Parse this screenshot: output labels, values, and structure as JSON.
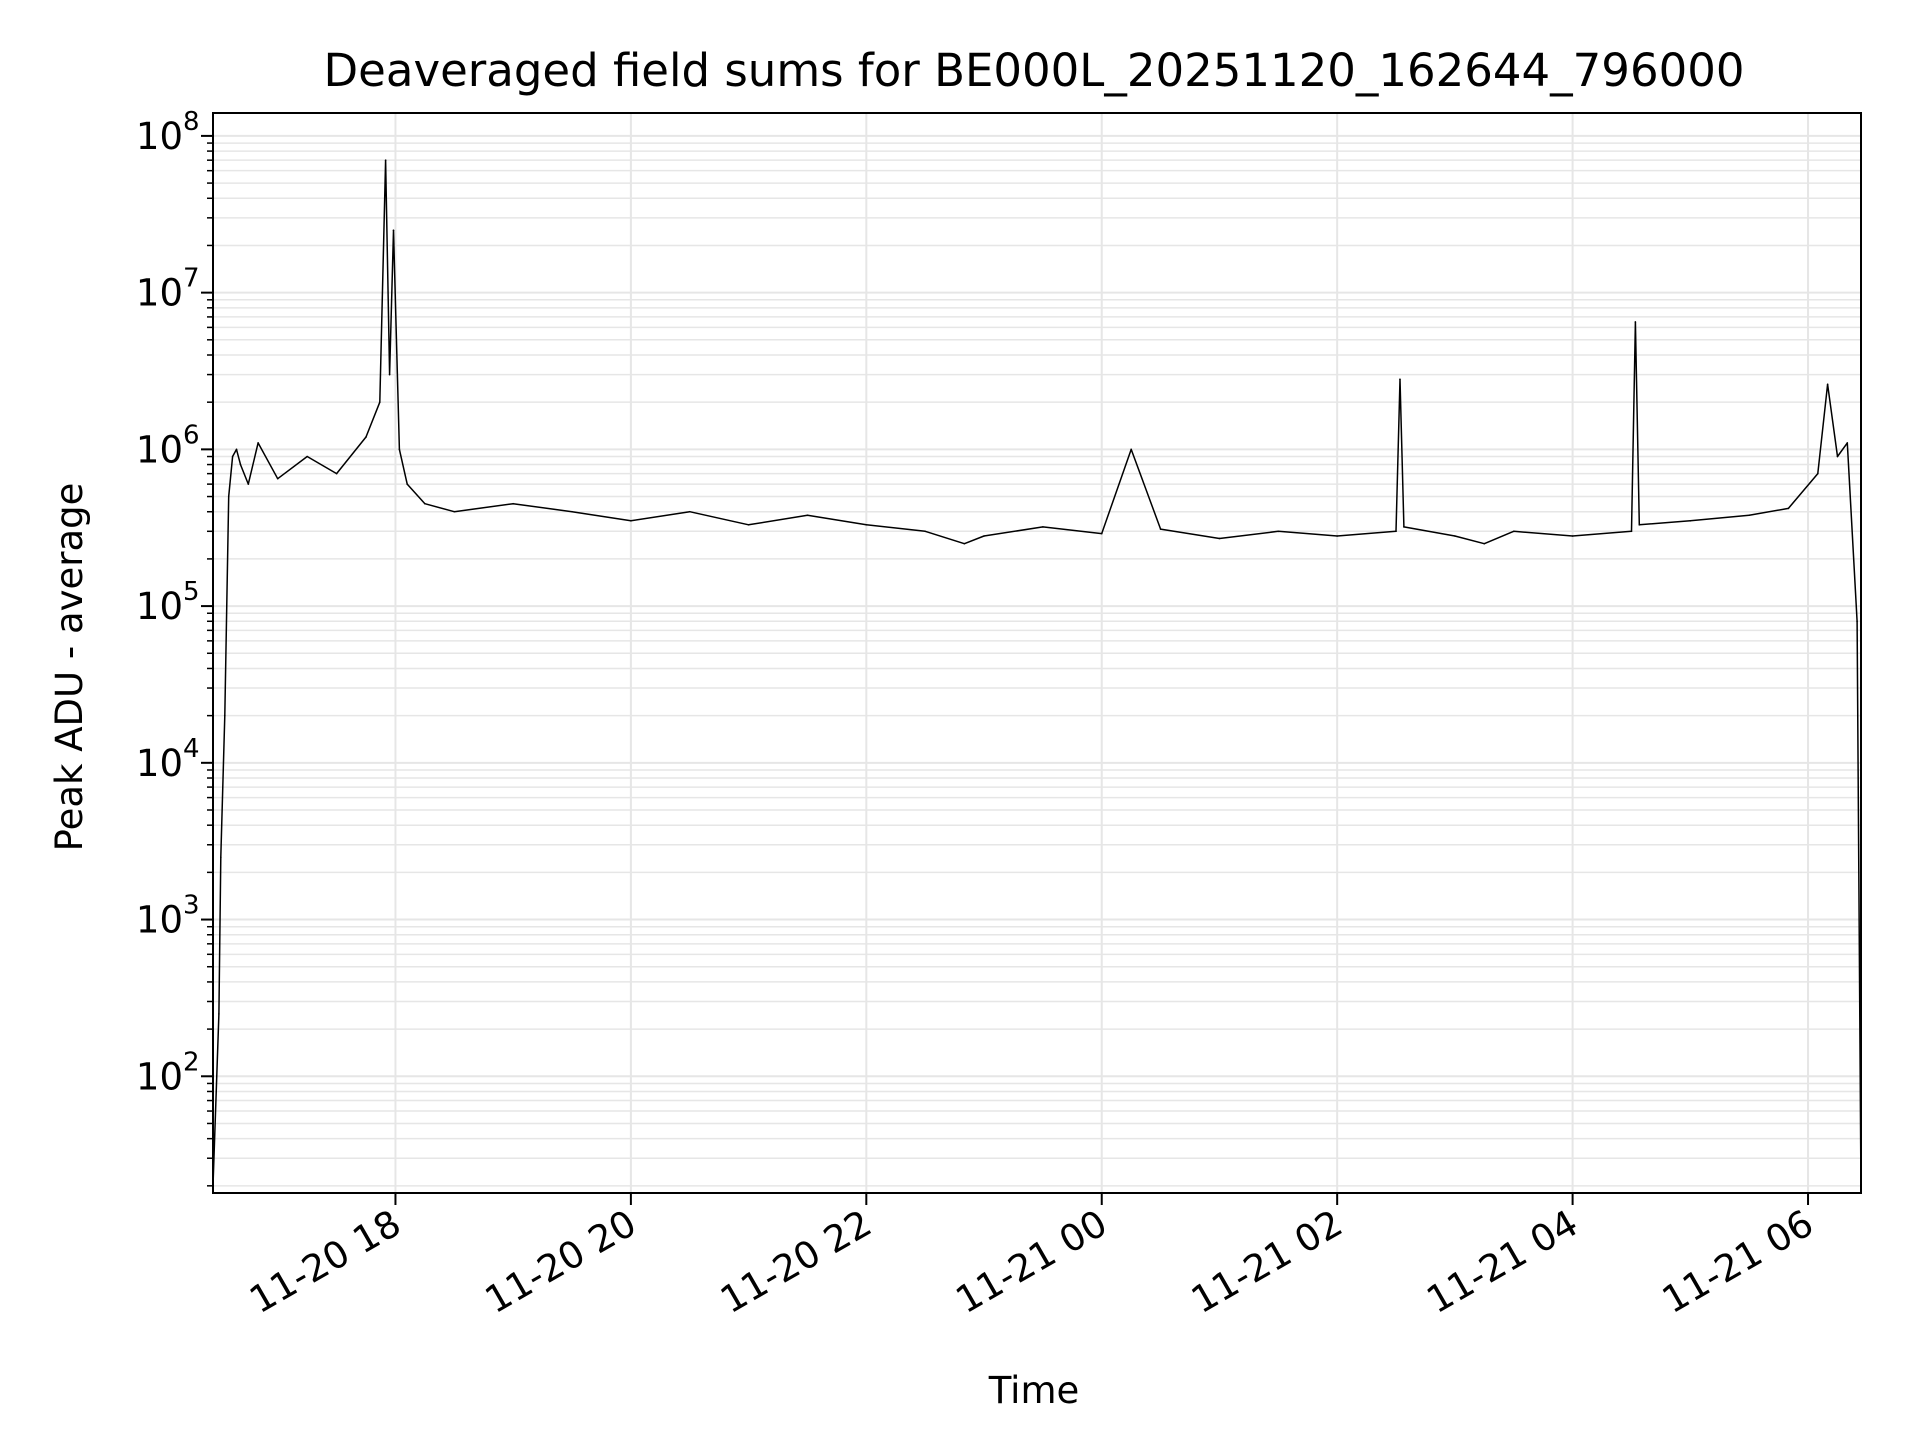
{
  "chart_data": {
    "type": "line",
    "title": "Deaveraged field sums for BE000L_20251120_162644_796000",
    "xlabel": "Time",
    "ylabel": "Peak ADU - average",
    "yscale": "log",
    "ylim": [
      18,
      140000000
    ],
    "xlim": [
      "2025-11-20 16:27",
      "2025-11-21 06:27"
    ],
    "grid": true,
    "line_color": "#000000",
    "x_ticks": [
      {
        "value": "2025-11-20 18:00",
        "label": "11-20 18"
      },
      {
        "value": "2025-11-20 20:00",
        "label": "11-20 20"
      },
      {
        "value": "2025-11-20 22:00",
        "label": "11-20 22"
      },
      {
        "value": "2025-11-21 00:00",
        "label": "11-21 00"
      },
      {
        "value": "2025-11-21 02:00",
        "label": "11-21 02"
      },
      {
        "value": "2025-11-21 04:00",
        "label": "11-21 04"
      },
      {
        "value": "2025-11-21 06:00",
        "label": "11-21 06"
      }
    ],
    "y_ticks": [
      {
        "value": 100,
        "base": "10",
        "exp": "2"
      },
      {
        "value": 1000,
        "base": "10",
        "exp": "3"
      },
      {
        "value": 10000,
        "base": "10",
        "exp": "4"
      },
      {
        "value": 100000,
        "base": "10",
        "exp": "5"
      },
      {
        "value": 1000000,
        "base": "10",
        "exp": "6"
      },
      {
        "value": 10000000,
        "base": "10",
        "exp": "7"
      },
      {
        "value": 100000000,
        "base": "10",
        "exp": "8"
      }
    ],
    "series": [
      {
        "x": [
          "2025-11-20 16:27",
          "2025-11-20 16:30",
          "2025-11-20 16:31",
          "2025-11-20 16:33",
          "2025-11-20 16:35",
          "2025-11-20 16:37",
          "2025-11-20 16:39",
          "2025-11-20 16:41",
          "2025-11-20 16:45",
          "2025-11-20 16:50",
          "2025-11-20 17:00",
          "2025-11-20 17:15",
          "2025-11-20 17:30",
          "2025-11-20 17:45",
          "2025-11-20 17:52",
          "2025-11-20 17:55",
          "2025-11-20 17:57",
          "2025-11-20 17:59",
          "2025-11-20 18:02",
          "2025-11-20 18:06",
          "2025-11-20 18:15",
          "2025-11-20 18:30",
          "2025-11-20 19:00",
          "2025-11-20 19:30",
          "2025-11-20 20:00",
          "2025-11-20 20:30",
          "2025-11-20 21:00",
          "2025-11-20 21:30",
          "2025-11-20 22:00",
          "2025-11-20 22:30",
          "2025-11-20 22:50",
          "2025-11-20 23:00",
          "2025-11-20 23:30",
          "2025-11-21 00:00",
          "2025-11-21 00:15",
          "2025-11-21 00:30",
          "2025-11-21 01:00",
          "2025-11-21 01:30",
          "2025-11-21 02:00",
          "2025-11-21 02:30",
          "2025-11-21 02:32",
          "2025-11-21 02:34",
          "2025-11-21 03:00",
          "2025-11-21 03:15",
          "2025-11-21 03:30",
          "2025-11-21 04:00",
          "2025-11-21 04:30",
          "2025-11-21 04:32",
          "2025-11-21 04:34",
          "2025-11-21 05:00",
          "2025-11-21 05:30",
          "2025-11-21 05:50",
          "2025-11-21 06:05",
          "2025-11-21 06:10",
          "2025-11-21 06:15",
          "2025-11-21 06:20",
          "2025-11-21 06:25",
          "2025-11-21 06:27"
        ],
        "y": [
          20,
          250,
          2500,
          20000,
          500000,
          900000,
          1000000,
          800000,
          600000,
          1100000,
          650000,
          900000,
          700000,
          1200000,
          2000000,
          70000000,
          3000000,
          25000000,
          1000000,
          600000,
          450000,
          400000,
          450000,
          400000,
          350000,
          400000,
          330000,
          380000,
          330000,
          300000,
          250000,
          280000,
          320000,
          290000,
          1000000,
          310000,
          270000,
          300000,
          280000,
          300000,
          2800000,
          320000,
          280000,
          250000,
          300000,
          280000,
          300000,
          6500000,
          330000,
          350000,
          380000,
          420000,
          700000,
          2600000,
          900000,
          1100000,
          80000,
          18
        ]
      }
    ]
  }
}
